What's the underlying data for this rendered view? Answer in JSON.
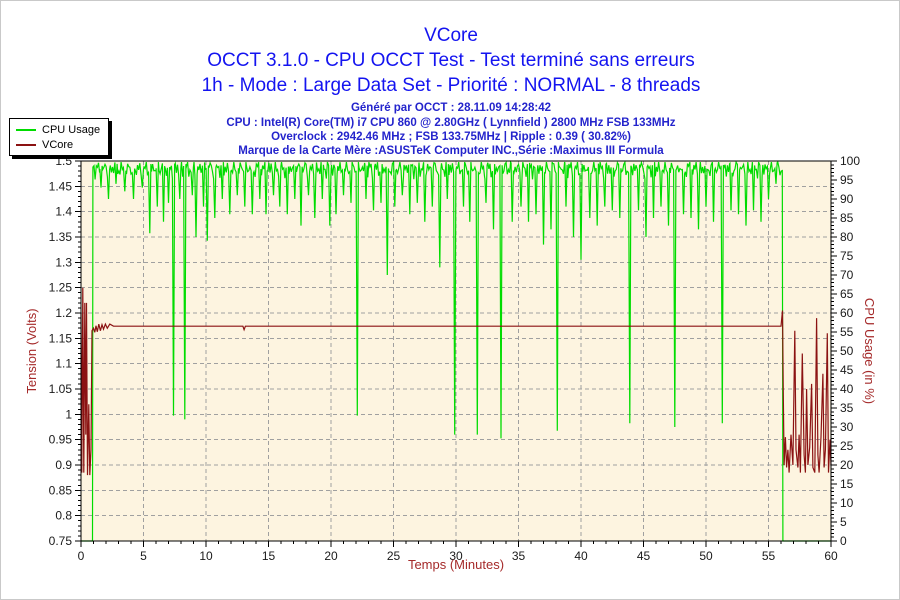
{
  "header": {
    "title": "VCore",
    "subtitle_test": "OCCT 3.1.0 - CPU OCCT Test - Test terminé sans erreurs",
    "subtitle_mode": "1h - Mode : Large Data Set - Priorité : NORMAL - 8 threads",
    "generated": "Généré par OCCT : 28.11.09 14:28:42",
    "cpu_info": "CPU : Intel(R) Core(TM) i7 CPU 860 @ 2.80GHz ( Lynnfield ) 2800 MHz FSB 133MHz",
    "overclock_info": "Overclock : 2942.46 MHz ; FSB 133.75MHz | Ripple : 0.39 ( 30.82%)",
    "motherboard_info": "Marque de la Carte Mère :ASUSTeK Computer INC.,Série :Maximus III Formula"
  },
  "colors": {
    "title_blue": "#1414f0",
    "info_blue": "#2424cc",
    "axis_label_red": "#a52a2a",
    "cpu_green": "#00dc00",
    "vcore_maroon": "#8b1212",
    "plot_bg": "#fdf4e0",
    "grid_gray": "#a0a0a0",
    "tick_text": "#1a1a1a"
  },
  "legend": {
    "items": [
      {
        "label": "CPU Usage",
        "color": "#00dc00"
      },
      {
        "label": "VCore",
        "color": "#8b1212"
      }
    ]
  },
  "chart_data": {
    "type": "line",
    "title": "VCore",
    "x_axis": {
      "label": "Temps (Minutes)",
      "min": 0,
      "max": 60,
      "minor_step": 1,
      "major_values": [
        0,
        5,
        10,
        15,
        20,
        25,
        30,
        35,
        40,
        45,
        50,
        55,
        60
      ],
      "major_labels": [
        "0",
        "5",
        "10",
        "15",
        "20",
        "25",
        "30",
        "35",
        "40",
        "45",
        "50",
        "55",
        "60"
      ]
    },
    "y_left": {
      "label": "Tension (Volts)",
      "min": 0.75,
      "max": 1.5,
      "minor_step": 0.01,
      "major_values": [
        0.75,
        0.8,
        0.85,
        0.9,
        0.95,
        1,
        1.05,
        1.1,
        1.15,
        1.2,
        1.25,
        1.3,
        1.35,
        1.4,
        1.45,
        1.5
      ],
      "major_labels": [
        "0.75",
        "0.8",
        "0.85",
        "0.9",
        "0.95",
        "1",
        "1.05",
        "1.1",
        "1.15",
        "1.2",
        "1.25",
        "1.3",
        "1.35",
        "1.4",
        "1.45",
        "1.5"
      ]
    },
    "y_right": {
      "label": "CPU Usage (in %)",
      "min": 0,
      "max": 100,
      "minor_step": 1,
      "major_values": [
        0,
        5,
        10,
        15,
        20,
        25,
        30,
        35,
        40,
        45,
        50,
        55,
        60,
        65,
        70,
        75,
        80,
        85,
        90,
        95,
        100
      ],
      "major_labels": [
        "0",
        "5",
        "10",
        "15",
        "20",
        "25",
        "30",
        "35",
        "40",
        "45",
        "50",
        "55",
        "60",
        "65",
        "70",
        "75",
        "80",
        "85",
        "90",
        "95",
        "100"
      ]
    },
    "grid": {
      "show": true,
      "style": "dashed",
      "color": "#a0a0a0"
    },
    "series": [
      {
        "name": "CPU Usage",
        "axis": "right",
        "color": "#00dc00",
        "idle_start": [
          0,
          0.92
        ],
        "rise_at": 0.95,
        "baseline": 98.0,
        "noise_amp": 2.2,
        "noise_max": 99.7,
        "drop_at": 56.15,
        "idle_end": 60,
        "dips": [
          [
            1.6,
            93
          ],
          [
            2.2,
            90
          ],
          [
            2.8,
            94
          ],
          [
            3.5,
            92
          ],
          [
            4.2,
            90
          ],
          [
            4.9,
            93
          ],
          [
            5.5,
            81
          ],
          [
            6.1,
            88
          ],
          [
            6.6,
            84
          ],
          [
            7.0,
            89
          ],
          [
            7.4,
            33
          ],
          [
            7.9,
            90
          ],
          [
            8.3,
            32
          ],
          [
            8.9,
            91
          ],
          [
            9.2,
            80
          ],
          [
            9.8,
            88
          ],
          [
            10.1,
            79
          ],
          [
            10.7,
            85
          ],
          [
            11.3,
            90
          ],
          [
            11.9,
            86
          ],
          [
            12.5,
            91
          ],
          [
            13.1,
            88
          ],
          [
            13.7,
            86
          ],
          [
            14.3,
            90
          ],
          [
            14.8,
            86
          ],
          [
            15.4,
            91
          ],
          [
            15.9,
            88
          ],
          [
            16.5,
            86
          ],
          [
            17.1,
            90
          ],
          [
            17.6,
            83
          ],
          [
            18.2,
            91
          ],
          [
            18.7,
            85
          ],
          [
            19.3,
            90
          ],
          [
            19.9,
            83
          ],
          [
            20.4,
            86
          ],
          [
            21.0,
            91
          ],
          [
            21.6,
            89
          ],
          [
            22.1,
            33
          ],
          [
            22.8,
            90
          ],
          [
            23.4,
            87
          ],
          [
            24.0,
            89
          ],
          [
            24.5,
            70
          ],
          [
            25.1,
            88
          ],
          [
            25.7,
            91
          ],
          [
            26.3,
            86
          ],
          [
            26.9,
            89
          ],
          [
            27.5,
            84
          ],
          [
            28.1,
            88
          ],
          [
            28.7,
            72
          ],
          [
            29.3,
            90
          ],
          [
            29.9,
            28
          ],
          [
            30.6,
            88
          ],
          [
            31.1,
            84
          ],
          [
            31.7,
            28
          ],
          [
            32.4,
            89
          ],
          [
            33.0,
            82
          ],
          [
            33.6,
            27
          ],
          [
            34.5,
            84
          ],
          [
            35.2,
            88
          ],
          [
            35.8,
            84
          ],
          [
            36.4,
            86
          ],
          [
            37.0,
            78
          ],
          [
            37.6,
            82
          ],
          [
            38.1,
            29
          ],
          [
            38.8,
            88
          ],
          [
            39.4,
            80
          ],
          [
            40.0,
            74
          ],
          [
            40.7,
            85
          ],
          [
            41.3,
            83
          ],
          [
            41.9,
            88
          ],
          [
            42.5,
            87
          ],
          [
            43.1,
            85
          ],
          [
            43.9,
            31
          ],
          [
            44.6,
            87
          ],
          [
            45.2,
            80
          ],
          [
            45.8,
            85
          ],
          [
            46.4,
            88
          ],
          [
            47.0,
            83
          ],
          [
            47.5,
            30
          ],
          [
            48.2,
            86
          ],
          [
            48.8,
            85
          ],
          [
            49.4,
            82
          ],
          [
            50.0,
            88
          ],
          [
            50.6,
            84
          ],
          [
            51.3,
            31
          ],
          [
            52.0,
            87
          ],
          [
            52.6,
            86
          ],
          [
            53.2,
            83
          ],
          [
            53.8,
            87
          ],
          [
            54.4,
            84
          ],
          [
            55.0,
            90
          ],
          [
            55.6,
            94
          ]
        ]
      },
      {
        "name": "VCore",
        "axis": "left",
        "color": "#8b1212",
        "points": [
          [
            0,
            1.2
          ],
          [
            0.06,
            0.885
          ],
          [
            0.14,
            1.25
          ],
          [
            0.22,
            0.885
          ],
          [
            0.3,
            1.22
          ],
          [
            0.38,
            0.96
          ],
          [
            0.44,
            1.22
          ],
          [
            0.52,
            0.88
          ],
          [
            0.62,
            1.02
          ],
          [
            0.7,
            0.88
          ],
          [
            0.8,
            0.93
          ],
          [
            0.88,
            1.165
          ],
          [
            1.0,
            1.17
          ],
          [
            1.1,
            1.162
          ],
          [
            1.2,
            1.175
          ],
          [
            1.3,
            1.163
          ],
          [
            1.42,
            1.178
          ],
          [
            1.55,
            1.165
          ],
          [
            1.68,
            1.177
          ],
          [
            1.8,
            1.168
          ],
          [
            1.95,
            1.178
          ],
          [
            2.1,
            1.17
          ],
          [
            2.3,
            1.178
          ],
          [
            2.6,
            1.174
          ],
          [
            12.95,
            1.174
          ],
          [
            13.05,
            1.167
          ],
          [
            13.15,
            1.174
          ],
          [
            56.0,
            1.174
          ],
          [
            56.12,
            1.205
          ],
          [
            56.18,
            1.04
          ],
          [
            56.25,
            0.9
          ],
          [
            56.35,
            0.955
          ],
          [
            56.45,
            0.895
          ],
          [
            56.55,
            0.93
          ],
          [
            56.65,
            0.885
          ],
          [
            56.8,
            0.96
          ],
          [
            56.95,
            0.9
          ],
          [
            57.1,
            1.165
          ],
          [
            57.2,
            0.93
          ],
          [
            57.35,
            0.895
          ],
          [
            57.45,
            0.96
          ],
          [
            57.55,
            0.885
          ],
          [
            57.7,
            1.12
          ],
          [
            57.85,
            0.92
          ],
          [
            57.95,
            0.885
          ],
          [
            58.05,
            1.05
          ],
          [
            58.15,
            0.9
          ],
          [
            58.3,
            0.935
          ],
          [
            58.45,
            1.06
          ],
          [
            58.55,
            0.895
          ],
          [
            58.7,
            0.885
          ],
          [
            58.85,
            1.19
          ],
          [
            58.95,
            0.92
          ],
          [
            59.05,
            0.885
          ],
          [
            59.2,
            0.955
          ],
          [
            59.35,
            1.08
          ],
          [
            59.45,
            0.895
          ],
          [
            59.55,
            0.93
          ],
          [
            59.7,
            1.16
          ],
          [
            59.8,
            0.885
          ],
          [
            59.92,
            0.95
          ],
          [
            60,
            0.9
          ]
        ]
      }
    ]
  }
}
